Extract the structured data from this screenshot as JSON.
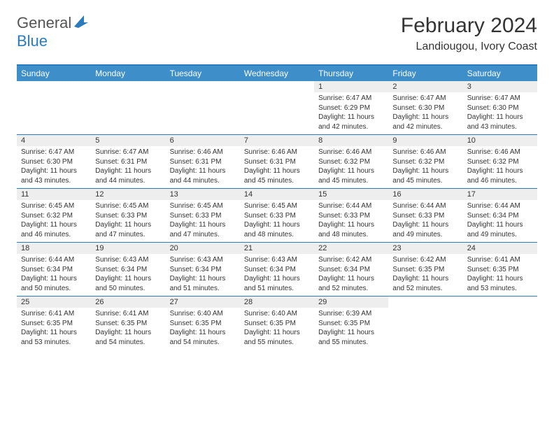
{
  "brand": {
    "name_part1": "General",
    "name_part2": "Blue"
  },
  "title": "February 2024",
  "location": "Landiougou, Ivory Coast",
  "colors": {
    "header_bg": "#3d8ec9",
    "border": "#2b7bbf",
    "daynum_bg": "#eeeeee",
    "text": "#333333",
    "brand_blue": "#2b7bbf",
    "brand_gray": "#555555"
  },
  "day_names": [
    "Sunday",
    "Monday",
    "Tuesday",
    "Wednesday",
    "Thursday",
    "Friday",
    "Saturday"
  ],
  "weeks": [
    [
      {
        "day": null
      },
      {
        "day": null
      },
      {
        "day": null
      },
      {
        "day": null
      },
      {
        "day": "1",
        "sunrise": "Sunrise: 6:47 AM",
        "sunset": "Sunset: 6:29 PM",
        "daylight1": "Daylight: 11 hours",
        "daylight2": "and 42 minutes."
      },
      {
        "day": "2",
        "sunrise": "Sunrise: 6:47 AM",
        "sunset": "Sunset: 6:30 PM",
        "daylight1": "Daylight: 11 hours",
        "daylight2": "and 42 minutes."
      },
      {
        "day": "3",
        "sunrise": "Sunrise: 6:47 AM",
        "sunset": "Sunset: 6:30 PM",
        "daylight1": "Daylight: 11 hours",
        "daylight2": "and 43 minutes."
      }
    ],
    [
      {
        "day": "4",
        "sunrise": "Sunrise: 6:47 AM",
        "sunset": "Sunset: 6:30 PM",
        "daylight1": "Daylight: 11 hours",
        "daylight2": "and 43 minutes."
      },
      {
        "day": "5",
        "sunrise": "Sunrise: 6:47 AM",
        "sunset": "Sunset: 6:31 PM",
        "daylight1": "Daylight: 11 hours",
        "daylight2": "and 44 minutes."
      },
      {
        "day": "6",
        "sunrise": "Sunrise: 6:46 AM",
        "sunset": "Sunset: 6:31 PM",
        "daylight1": "Daylight: 11 hours",
        "daylight2": "and 44 minutes."
      },
      {
        "day": "7",
        "sunrise": "Sunrise: 6:46 AM",
        "sunset": "Sunset: 6:31 PM",
        "daylight1": "Daylight: 11 hours",
        "daylight2": "and 45 minutes."
      },
      {
        "day": "8",
        "sunrise": "Sunrise: 6:46 AM",
        "sunset": "Sunset: 6:32 PM",
        "daylight1": "Daylight: 11 hours",
        "daylight2": "and 45 minutes."
      },
      {
        "day": "9",
        "sunrise": "Sunrise: 6:46 AM",
        "sunset": "Sunset: 6:32 PM",
        "daylight1": "Daylight: 11 hours",
        "daylight2": "and 45 minutes."
      },
      {
        "day": "10",
        "sunrise": "Sunrise: 6:46 AM",
        "sunset": "Sunset: 6:32 PM",
        "daylight1": "Daylight: 11 hours",
        "daylight2": "and 46 minutes."
      }
    ],
    [
      {
        "day": "11",
        "sunrise": "Sunrise: 6:45 AM",
        "sunset": "Sunset: 6:32 PM",
        "daylight1": "Daylight: 11 hours",
        "daylight2": "and 46 minutes."
      },
      {
        "day": "12",
        "sunrise": "Sunrise: 6:45 AM",
        "sunset": "Sunset: 6:33 PM",
        "daylight1": "Daylight: 11 hours",
        "daylight2": "and 47 minutes."
      },
      {
        "day": "13",
        "sunrise": "Sunrise: 6:45 AM",
        "sunset": "Sunset: 6:33 PM",
        "daylight1": "Daylight: 11 hours",
        "daylight2": "and 47 minutes."
      },
      {
        "day": "14",
        "sunrise": "Sunrise: 6:45 AM",
        "sunset": "Sunset: 6:33 PM",
        "daylight1": "Daylight: 11 hours",
        "daylight2": "and 48 minutes."
      },
      {
        "day": "15",
        "sunrise": "Sunrise: 6:44 AM",
        "sunset": "Sunset: 6:33 PM",
        "daylight1": "Daylight: 11 hours",
        "daylight2": "and 48 minutes."
      },
      {
        "day": "16",
        "sunrise": "Sunrise: 6:44 AM",
        "sunset": "Sunset: 6:33 PM",
        "daylight1": "Daylight: 11 hours",
        "daylight2": "and 49 minutes."
      },
      {
        "day": "17",
        "sunrise": "Sunrise: 6:44 AM",
        "sunset": "Sunset: 6:34 PM",
        "daylight1": "Daylight: 11 hours",
        "daylight2": "and 49 minutes."
      }
    ],
    [
      {
        "day": "18",
        "sunrise": "Sunrise: 6:44 AM",
        "sunset": "Sunset: 6:34 PM",
        "daylight1": "Daylight: 11 hours",
        "daylight2": "and 50 minutes."
      },
      {
        "day": "19",
        "sunrise": "Sunrise: 6:43 AM",
        "sunset": "Sunset: 6:34 PM",
        "daylight1": "Daylight: 11 hours",
        "daylight2": "and 50 minutes."
      },
      {
        "day": "20",
        "sunrise": "Sunrise: 6:43 AM",
        "sunset": "Sunset: 6:34 PM",
        "daylight1": "Daylight: 11 hours",
        "daylight2": "and 51 minutes."
      },
      {
        "day": "21",
        "sunrise": "Sunrise: 6:43 AM",
        "sunset": "Sunset: 6:34 PM",
        "daylight1": "Daylight: 11 hours",
        "daylight2": "and 51 minutes."
      },
      {
        "day": "22",
        "sunrise": "Sunrise: 6:42 AM",
        "sunset": "Sunset: 6:34 PM",
        "daylight1": "Daylight: 11 hours",
        "daylight2": "and 52 minutes."
      },
      {
        "day": "23",
        "sunrise": "Sunrise: 6:42 AM",
        "sunset": "Sunset: 6:35 PM",
        "daylight1": "Daylight: 11 hours",
        "daylight2": "and 52 minutes."
      },
      {
        "day": "24",
        "sunrise": "Sunrise: 6:41 AM",
        "sunset": "Sunset: 6:35 PM",
        "daylight1": "Daylight: 11 hours",
        "daylight2": "and 53 minutes."
      }
    ],
    [
      {
        "day": "25",
        "sunrise": "Sunrise: 6:41 AM",
        "sunset": "Sunset: 6:35 PM",
        "daylight1": "Daylight: 11 hours",
        "daylight2": "and 53 minutes."
      },
      {
        "day": "26",
        "sunrise": "Sunrise: 6:41 AM",
        "sunset": "Sunset: 6:35 PM",
        "daylight1": "Daylight: 11 hours",
        "daylight2": "and 54 minutes."
      },
      {
        "day": "27",
        "sunrise": "Sunrise: 6:40 AM",
        "sunset": "Sunset: 6:35 PM",
        "daylight1": "Daylight: 11 hours",
        "daylight2": "and 54 minutes."
      },
      {
        "day": "28",
        "sunrise": "Sunrise: 6:40 AM",
        "sunset": "Sunset: 6:35 PM",
        "daylight1": "Daylight: 11 hours",
        "daylight2": "and 55 minutes."
      },
      {
        "day": "29",
        "sunrise": "Sunrise: 6:39 AM",
        "sunset": "Sunset: 6:35 PM",
        "daylight1": "Daylight: 11 hours",
        "daylight2": "and 55 minutes."
      },
      {
        "day": null
      },
      {
        "day": null
      }
    ]
  ]
}
